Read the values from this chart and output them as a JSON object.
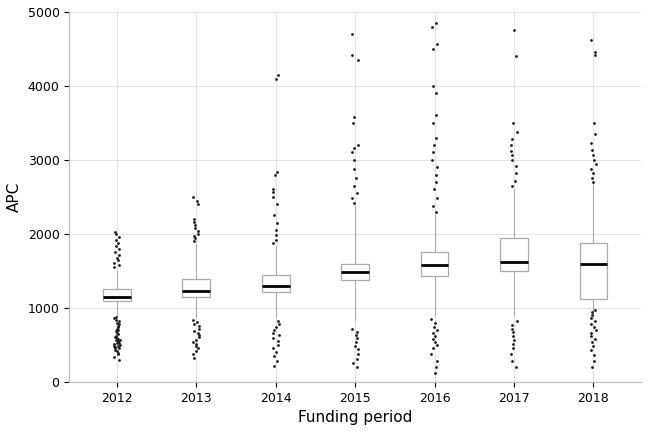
{
  "years": [
    2012,
    2013,
    2014,
    2015,
    2016,
    2017,
    2018
  ],
  "box_stats": {
    "2012": {
      "q1": 1090,
      "median": 1150,
      "q3": 1260,
      "whislo": 900,
      "whishi": 1500,
      "outliers": [
        300,
        340,
        370,
        390,
        410,
        430,
        450,
        460,
        470,
        480,
        490,
        500,
        510,
        520,
        530,
        540,
        550,
        560,
        570,
        580,
        590,
        600,
        620,
        640,
        660,
        680,
        700,
        720,
        740,
        760,
        780,
        800,
        820,
        840,
        860,
        880,
        1550,
        1580,
        1610,
        1640,
        1680,
        1720,
        1760,
        1800,
        1840,
        1880,
        1920,
        1960,
        2000,
        2030
      ]
    },
    "2013": {
      "q1": 1150,
      "median": 1230,
      "q3": 1390,
      "whislo": 870,
      "whishi": 1860,
      "outliers": [
        320,
        370,
        410,
        450,
        480,
        510,
        540,
        570,
        600,
        630,
        660,
        690,
        720,
        750,
        780,
        810,
        840,
        1900,
        1940,
        1970,
        2000,
        2040,
        2080,
        2120,
        2160,
        2200,
        2400,
        2440,
        2500
      ]
    },
    "2014": {
      "q1": 1220,
      "median": 1300,
      "q3": 1440,
      "whislo": 870,
      "whishi": 1830,
      "outliers": [
        210,
        280,
        350,
        400,
        450,
        500,
        550,
        590,
        630,
        660,
        700,
        740,
        780,
        820,
        1870,
        1920,
        1980,
        2050,
        2150,
        2250,
        2400,
        2500,
        2560,
        2610,
        2800,
        2840,
        4100,
        4150
      ]
    },
    "2015": {
      "q1": 1370,
      "median": 1490,
      "q3": 1590,
      "whislo": 830,
      "whishi": 2380,
      "outliers": [
        200,
        250,
        310,
        380,
        440,
        490,
        540,
        590,
        630,
        670,
        720,
        2420,
        2480,
        2550,
        2650,
        2750,
        2870,
        3000,
        3100,
        3160,
        3200,
        3500,
        3580,
        4350,
        4420,
        4700
      ]
    },
    "2016": {
      "q1": 1430,
      "median": 1580,
      "q3": 1750,
      "whislo": 900,
      "whishi": 2260,
      "outliers": [
        120,
        200,
        280,
        370,
        450,
        500,
        540,
        580,
        620,
        660,
        700,
        740,
        800,
        850,
        2300,
        2380,
        2480,
        2600,
        2700,
        2800,
        2900,
        3000,
        3100,
        3200,
        3300,
        3500,
        3600,
        3900,
        4000,
        4500,
        4560,
        4800,
        4850
      ]
    },
    "2017": {
      "q1": 1500,
      "median": 1620,
      "q3": 1940,
      "whislo": 900,
      "whishi": 2600,
      "outliers": [
        200,
        280,
        380,
        450,
        510,
        570,
        620,
        670,
        720,
        770,
        820,
        2650,
        2720,
        2820,
        2920,
        3000,
        3060,
        3120,
        3200,
        3280,
        3380,
        3500,
        4400,
        4750
      ]
    },
    "2018": {
      "q1": 1120,
      "median": 1590,
      "q3": 1870,
      "whislo": 880,
      "whishi": 2660,
      "outliers": [
        200,
        280,
        360,
        430,
        490,
        540,
        580,
        620,
        660,
        700,
        740,
        780,
        820,
        860,
        900,
        940,
        970,
        2700,
        2760,
        2820,
        2880,
        2940,
        3000,
        3060,
        3130,
        3230,
        3350,
        3500,
        4420,
        4460,
        4620
      ]
    }
  },
  "xlabel": "Funding period",
  "ylabel": "APC",
  "ylim": [
    0,
    5000
  ],
  "yticks": [
    0,
    1000,
    2000,
    3000,
    4000,
    5000
  ],
  "background_color": "#ffffff",
  "grid_color": "#dddddd",
  "box_edgecolor": "#aaaaaa",
  "box_facecolor": "#ffffff",
  "median_color": "#000000",
  "whisker_color": "#aaaaaa",
  "outlier_color": "#1a1a1a",
  "xlabel_fontsize": 11,
  "ylabel_fontsize": 11,
  "tick_fontsize": 9,
  "box_width": 0.35,
  "median_linewidth": 2.0,
  "whisker_linewidth": 0.8
}
